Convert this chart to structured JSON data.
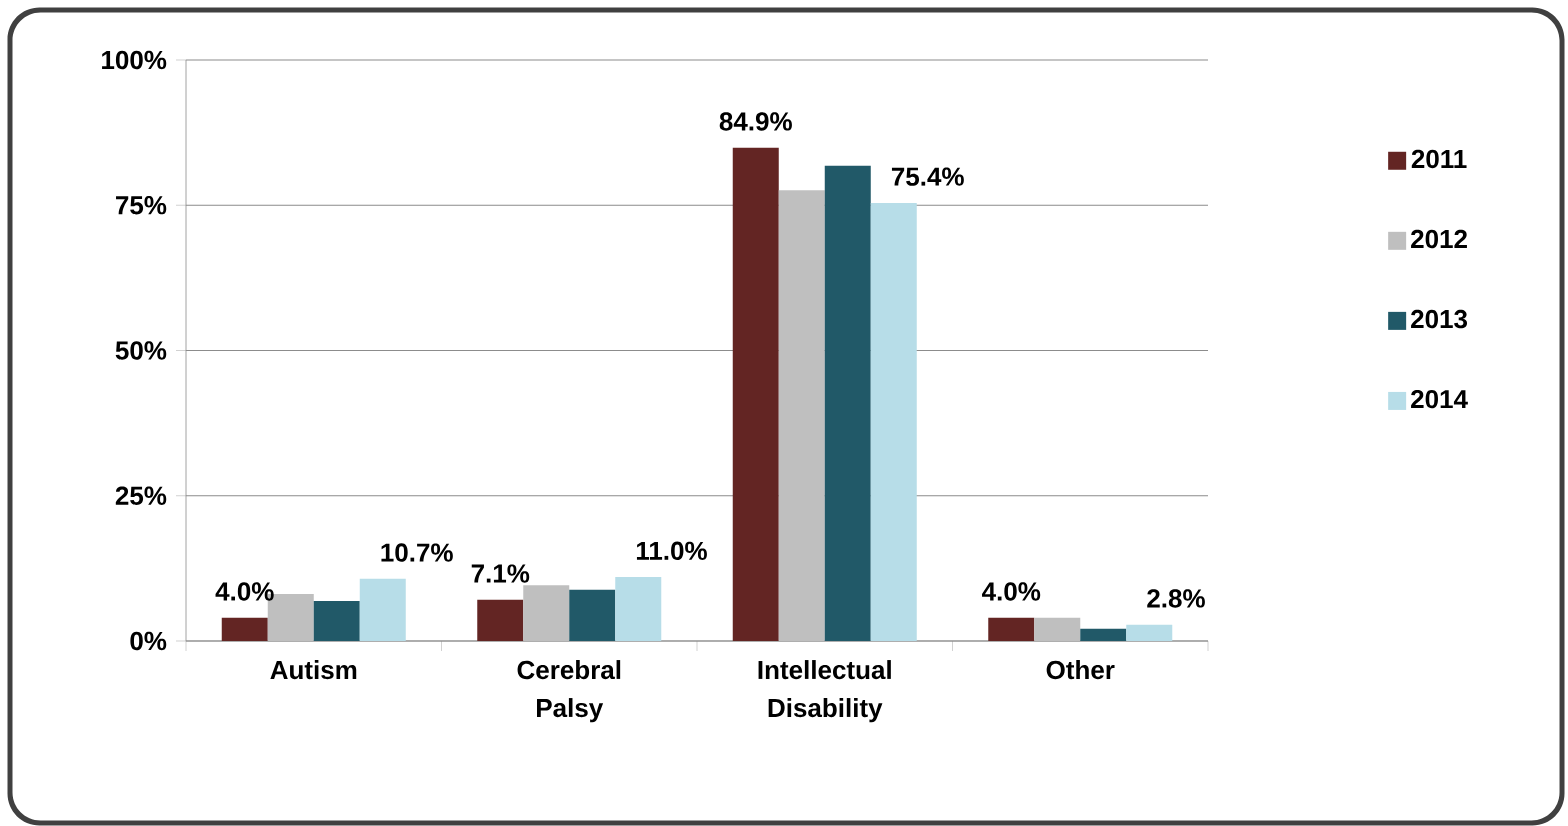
{
  "chart_data": {
    "type": "bar",
    "categories": [
      "Autism",
      "Cerebral Palsy",
      "Intellectual Disability",
      "Other"
    ],
    "series": [
      {
        "name": "2011",
        "color": "#632523",
        "values": [
          4.0,
          7.1,
          84.9,
          4.0
        ],
        "value_labels": [
          "4.0%",
          "7.1%",
          "84.9%",
          "4.0%"
        ]
      },
      {
        "name": "2012",
        "color": "#bfbfbf",
        "values": [
          8.1,
          9.6,
          77.6,
          4.0
        ]
      },
      {
        "name": "2013",
        "color": "#215968",
        "values": [
          6.9,
          8.8,
          81.8,
          2.1
        ]
      },
      {
        "name": "2014",
        "color": "#b7dde8",
        "values": [
          10.7,
          11.0,
          75.4,
          2.8
        ],
        "value_labels": [
          "10.7%",
          "11.0%",
          "75.4%",
          "2.8%"
        ]
      }
    ],
    "ylim": [
      0,
      100
    ],
    "yticks": [
      {
        "value": 0,
        "label": "0%"
      },
      {
        "value": 25,
        "label": "25%"
      },
      {
        "value": 50,
        "label": "50%"
      },
      {
        "value": 75,
        "label": "75%"
      },
      {
        "value": 100,
        "label": "100%"
      }
    ],
    "grid": "y",
    "legend": "right"
  }
}
